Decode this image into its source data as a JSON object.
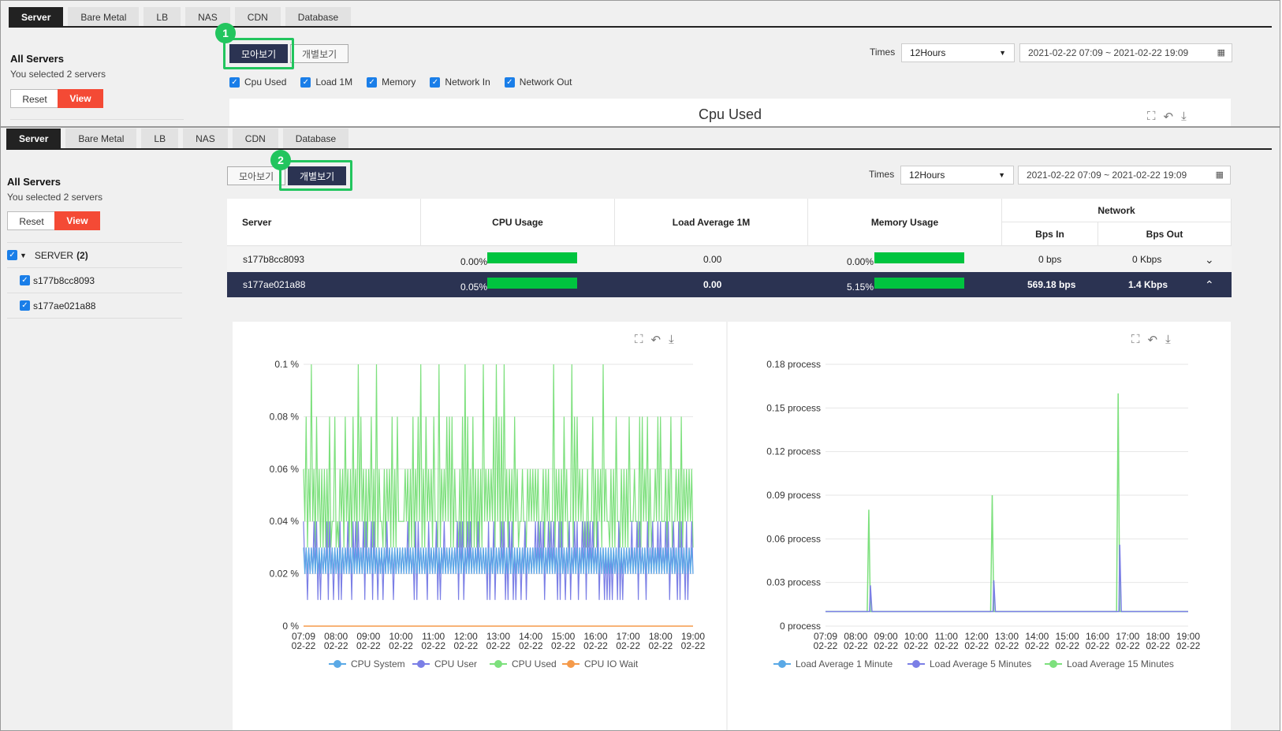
{
  "tabs": [
    "Server",
    "Bare Metal",
    "LB",
    "NAS",
    "CDN",
    "Database"
  ],
  "sidebar": {
    "title": "All Servers",
    "subtitle": "You selected 2 servers",
    "reset_label": "Reset",
    "view_label": "View",
    "tree": {
      "group_label": "SERVER",
      "group_count": "(2)",
      "items": [
        "s177b8cc8093",
        "s177ae021a88"
      ]
    }
  },
  "toggle": {
    "combined": "모아보기",
    "individual": "개별보기"
  },
  "steps": [
    "1",
    "2"
  ],
  "times": {
    "label": "Times",
    "value": "12Hours",
    "range": "2021-02-22 07:09 ~ 2021-02-22 19:09"
  },
  "metrics": [
    "Cpu Used",
    "Load 1M",
    "Memory",
    "Network In",
    "Network Out"
  ],
  "preview_chart_title": "Cpu Used",
  "table": {
    "headers": {
      "server": "Server",
      "cpu": "CPU Usage",
      "load": "Load Average 1M",
      "memory": "Memory Usage",
      "network": "Network",
      "bps_in": "Bps In",
      "bps_out": "Bps Out"
    },
    "rows": [
      {
        "server": "s177b8cc8093",
        "cpu": "0.00%",
        "cpu_bar": 1.0,
        "load": "0.00",
        "memory": "0.00%",
        "mem_bar": 1.0,
        "bps_in": "0 bps",
        "bps_out": "0 Kbps",
        "selected": false
      },
      {
        "server": "s177ae021a88",
        "cpu": "0.05%",
        "cpu_bar": 1.0,
        "load": "0.00",
        "memory": "5.15%",
        "mem_bar": 1.0,
        "bps_in": "569.18 bps",
        "bps_out": "1.4 Kbps",
        "selected": true
      }
    ]
  },
  "colors": {
    "accent": "#f44a35",
    "selected_row": "#2b3352",
    "highlight": "#22c55e",
    "cpu_system": "#5aa9e6",
    "cpu_user": "#7b7fe6",
    "cpu_used": "#7de07d",
    "cpu_iowait": "#f59a4a"
  },
  "chart_data": [
    {
      "type": "line",
      "y_ticks": [
        "0.1 %",
        "0.08 %",
        "0.06 %",
        "0.04 %",
        "0.02 %",
        "0 %"
      ],
      "ylim": [
        0,
        0.1
      ],
      "x_ticks": [
        [
          "07:09",
          "02-22"
        ],
        [
          "08:00",
          "02-22"
        ],
        [
          "09:00",
          "02-22"
        ],
        [
          "10:00",
          "02-22"
        ],
        [
          "11:00",
          "02-22"
        ],
        [
          "12:00",
          "02-22"
        ],
        [
          "13:00",
          "02-22"
        ],
        [
          "14:00",
          "02-22"
        ],
        [
          "15:00",
          "02-22"
        ],
        [
          "16:00",
          "02-22"
        ],
        [
          "17:00",
          "02-22"
        ],
        [
          "18:00",
          "02-22"
        ],
        [
          "19:00",
          "02-22"
        ]
      ],
      "series": [
        {
          "name": "CPU System",
          "values_range": [
            0.02,
            0.03
          ]
        },
        {
          "name": "CPU User",
          "values_range": [
            0.01,
            0.04
          ]
        },
        {
          "name": "CPU Used",
          "values_range": [
            0.03,
            0.1
          ]
        },
        {
          "name": "CPU IO Wait",
          "values_range": [
            0,
            0
          ]
        }
      ]
    },
    {
      "type": "line",
      "y_ticks": [
        "0.18 process",
        "0.15 process",
        "0.12 process",
        "0.09 process",
        "0.06 process",
        "0.03 process",
        "0 process"
      ],
      "ylim": [
        0,
        0.18
      ],
      "x_ticks": [
        [
          "07:09",
          "02-22"
        ],
        [
          "08:00",
          "02-22"
        ],
        [
          "09:00",
          "02-22"
        ],
        [
          "10:00",
          "02-22"
        ],
        [
          "11:00",
          "02-22"
        ],
        [
          "12:00",
          "02-22"
        ],
        [
          "13:00",
          "02-22"
        ],
        [
          "14:00",
          "02-22"
        ],
        [
          "15:00",
          "02-22"
        ],
        [
          "16:00",
          "02-22"
        ],
        [
          "17:00",
          "02-22"
        ],
        [
          "18:00",
          "02-22"
        ],
        [
          "19:00",
          "02-22"
        ]
      ],
      "series": [
        {
          "name": "Load Average 1 Minute",
          "baseline": 0.01
        },
        {
          "name": "Load Average 5 Minutes",
          "baseline": 0.01
        },
        {
          "name": "Load Average 15 Minutes",
          "baseline": 0.01,
          "spikes": [
            {
              "time": "08:35",
              "value": 0.08
            },
            {
              "time": "12:40",
              "value": 0.09
            },
            {
              "time": "16:50",
              "value": 0.16
            }
          ]
        }
      ]
    }
  ]
}
